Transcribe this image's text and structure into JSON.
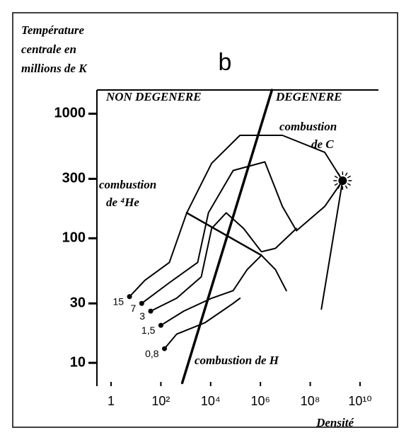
{
  "chart_data": {
    "type": "line",
    "title": "b",
    "y_label": [
      "Température",
      "centrale en",
      "millions de K"
    ],
    "x_label": "Densité",
    "log_x": true,
    "log_y": true,
    "xlim": [
      0.27,
      55000000000.0
    ],
    "ylim": [
      6.5,
      1550
    ],
    "xticks": [
      1,
      {
        "value": 100,
        "label": "10²"
      },
      {
        "value": 10000,
        "label": "10⁴"
      },
      {
        "value": 1000000,
        "label": "10⁶"
      },
      {
        "value": 100000000,
        "label": "10⁸"
      },
      {
        "value": 10000000000,
        "label": "10¹⁰"
      }
    ],
    "yticks": [
      10,
      30,
      100,
      300,
      1000
    ],
    "annotations": [
      "NON DEGENERE",
      "DEGENERE",
      "combustion",
      "de C",
      "combustion",
      "de ⁴He",
      "combustion de H"
    ],
    "series": [
      {
        "name": "15",
        "color": "#000",
        "x": [
          5.5,
          23,
          220,
          1100,
          11000,
          150000,
          7600000,
          380000000,
          2000000000,
          280000000
        ],
        "values": [
          34,
          46,
          64,
          160,
          400,
          670,
          670,
          490,
          290,
          27
        ]
      },
      {
        "name": "7",
        "color": "#000",
        "x": [
          17,
          220,
          3000,
          8100,
          80000,
          1500000,
          7600000,
          28000000,
          380000000,
          2000000000
        ],
        "values": [
          30,
          44,
          64,
          160,
          350,
          410,
          180,
          115,
          180,
          290
        ]
      },
      {
        "name": "3",
        "color": "#000",
        "x": [
          39,
          430,
          4200,
          11000,
          42000,
          210000,
          1100000,
          4000000,
          28000000
        ],
        "values": [
          26,
          33,
          49,
          120,
          160,
          120,
          78,
          83,
          120
        ]
      },
      {
        "name": "1,5",
        "color": "#000",
        "x": [
          100,
          830,
          11000,
          80000,
          290000,
          1100000,
          4000000,
          11000000
        ],
        "values": [
          20,
          26,
          33,
          38,
          56,
          73,
          56,
          38
        ]
      },
      {
        "name": "0,8",
        "color": "#000",
        "x": [
          140,
          430,
          5900,
          80000,
          150000
        ],
        "values": [
          13,
          17,
          21,
          30,
          33
        ]
      }
    ],
    "lines": [
      {
        "x": [
          720,
          2900000
        ],
        "values": [
          6.9,
          1550
        ]
      },
      {
        "x": [
          1100,
          1100000
        ],
        "values": [
          160,
          73
        ]
      }
    ],
    "star": {
      "x": 2000000000,
      "y": 290
    }
  }
}
